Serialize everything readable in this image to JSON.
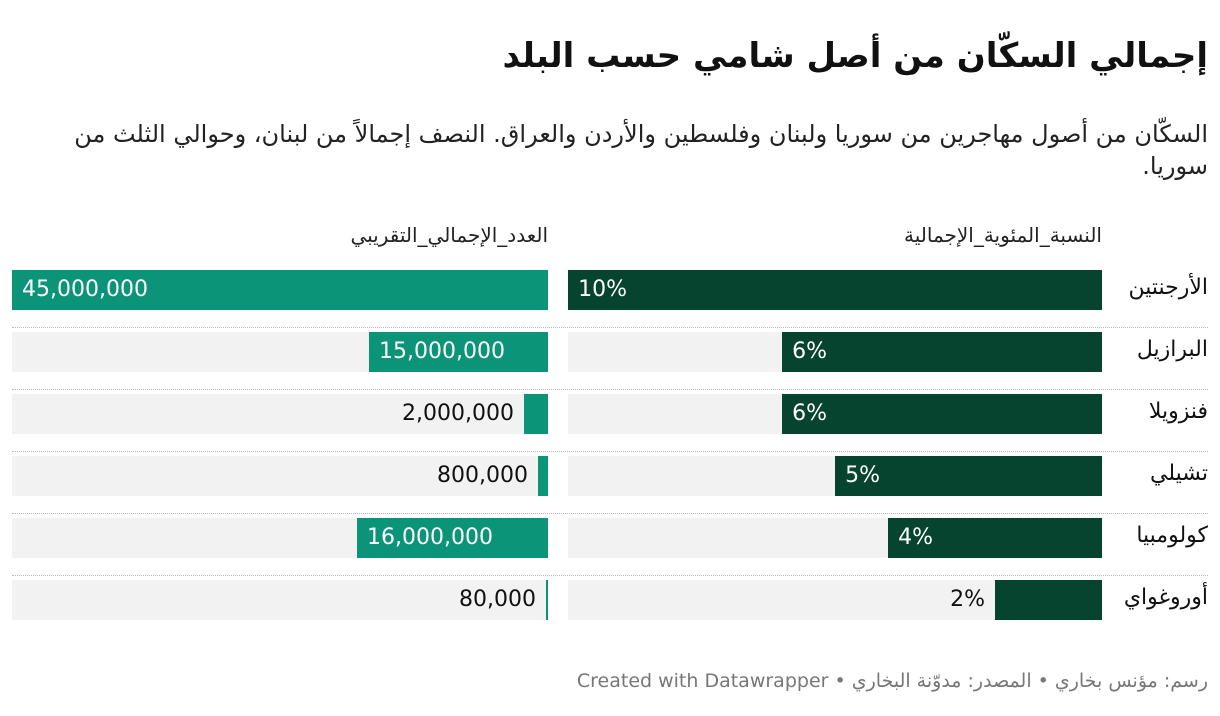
{
  "chart_data": {
    "type": "bar",
    "title": "إجمالي السكّان من أصل شامي حسب البلد",
    "subtitle": "السكّان من أصول مهاجرين من سوريا ولبنان وفلسطين والأردن والعراق. النصف إجمالاً من لبنان، وحوالي الثلث من سوريا.",
    "categories": [
      "الأرجنتين",
      "البرازيل",
      "فنزويلا",
      "تشيلي",
      "كولومبيا",
      "أوروغواي"
    ],
    "series": [
      {
        "name": "النسبة_المئوية_الإجمالية",
        "values": [
          10,
          6,
          6,
          5,
          4,
          2
        ],
        "labels": [
          "10%",
          "6%",
          "6%",
          "5%",
          "4%",
          "2%"
        ],
        "range": [
          0,
          10
        ]
      },
      {
        "name": "العدد_الإجمالي_التقريبي",
        "values": [
          45000000,
          15000000,
          2000000,
          800000,
          16000000,
          80000
        ],
        "labels": [
          "45,000,000",
          "15,000,000",
          "2,000,000",
          "800,000",
          "16,000,000",
          "80,000"
        ],
        "range": [
          0,
          45000000
        ]
      }
    ],
    "colors": {
      "percent_bar": "#074430",
      "count_bar": "#0b9478",
      "track": "#f2f2f2"
    }
  },
  "footer": "رسم: مؤنس بخاري • المصدر: مدوّنة البخاري • Created with Datawrapper"
}
